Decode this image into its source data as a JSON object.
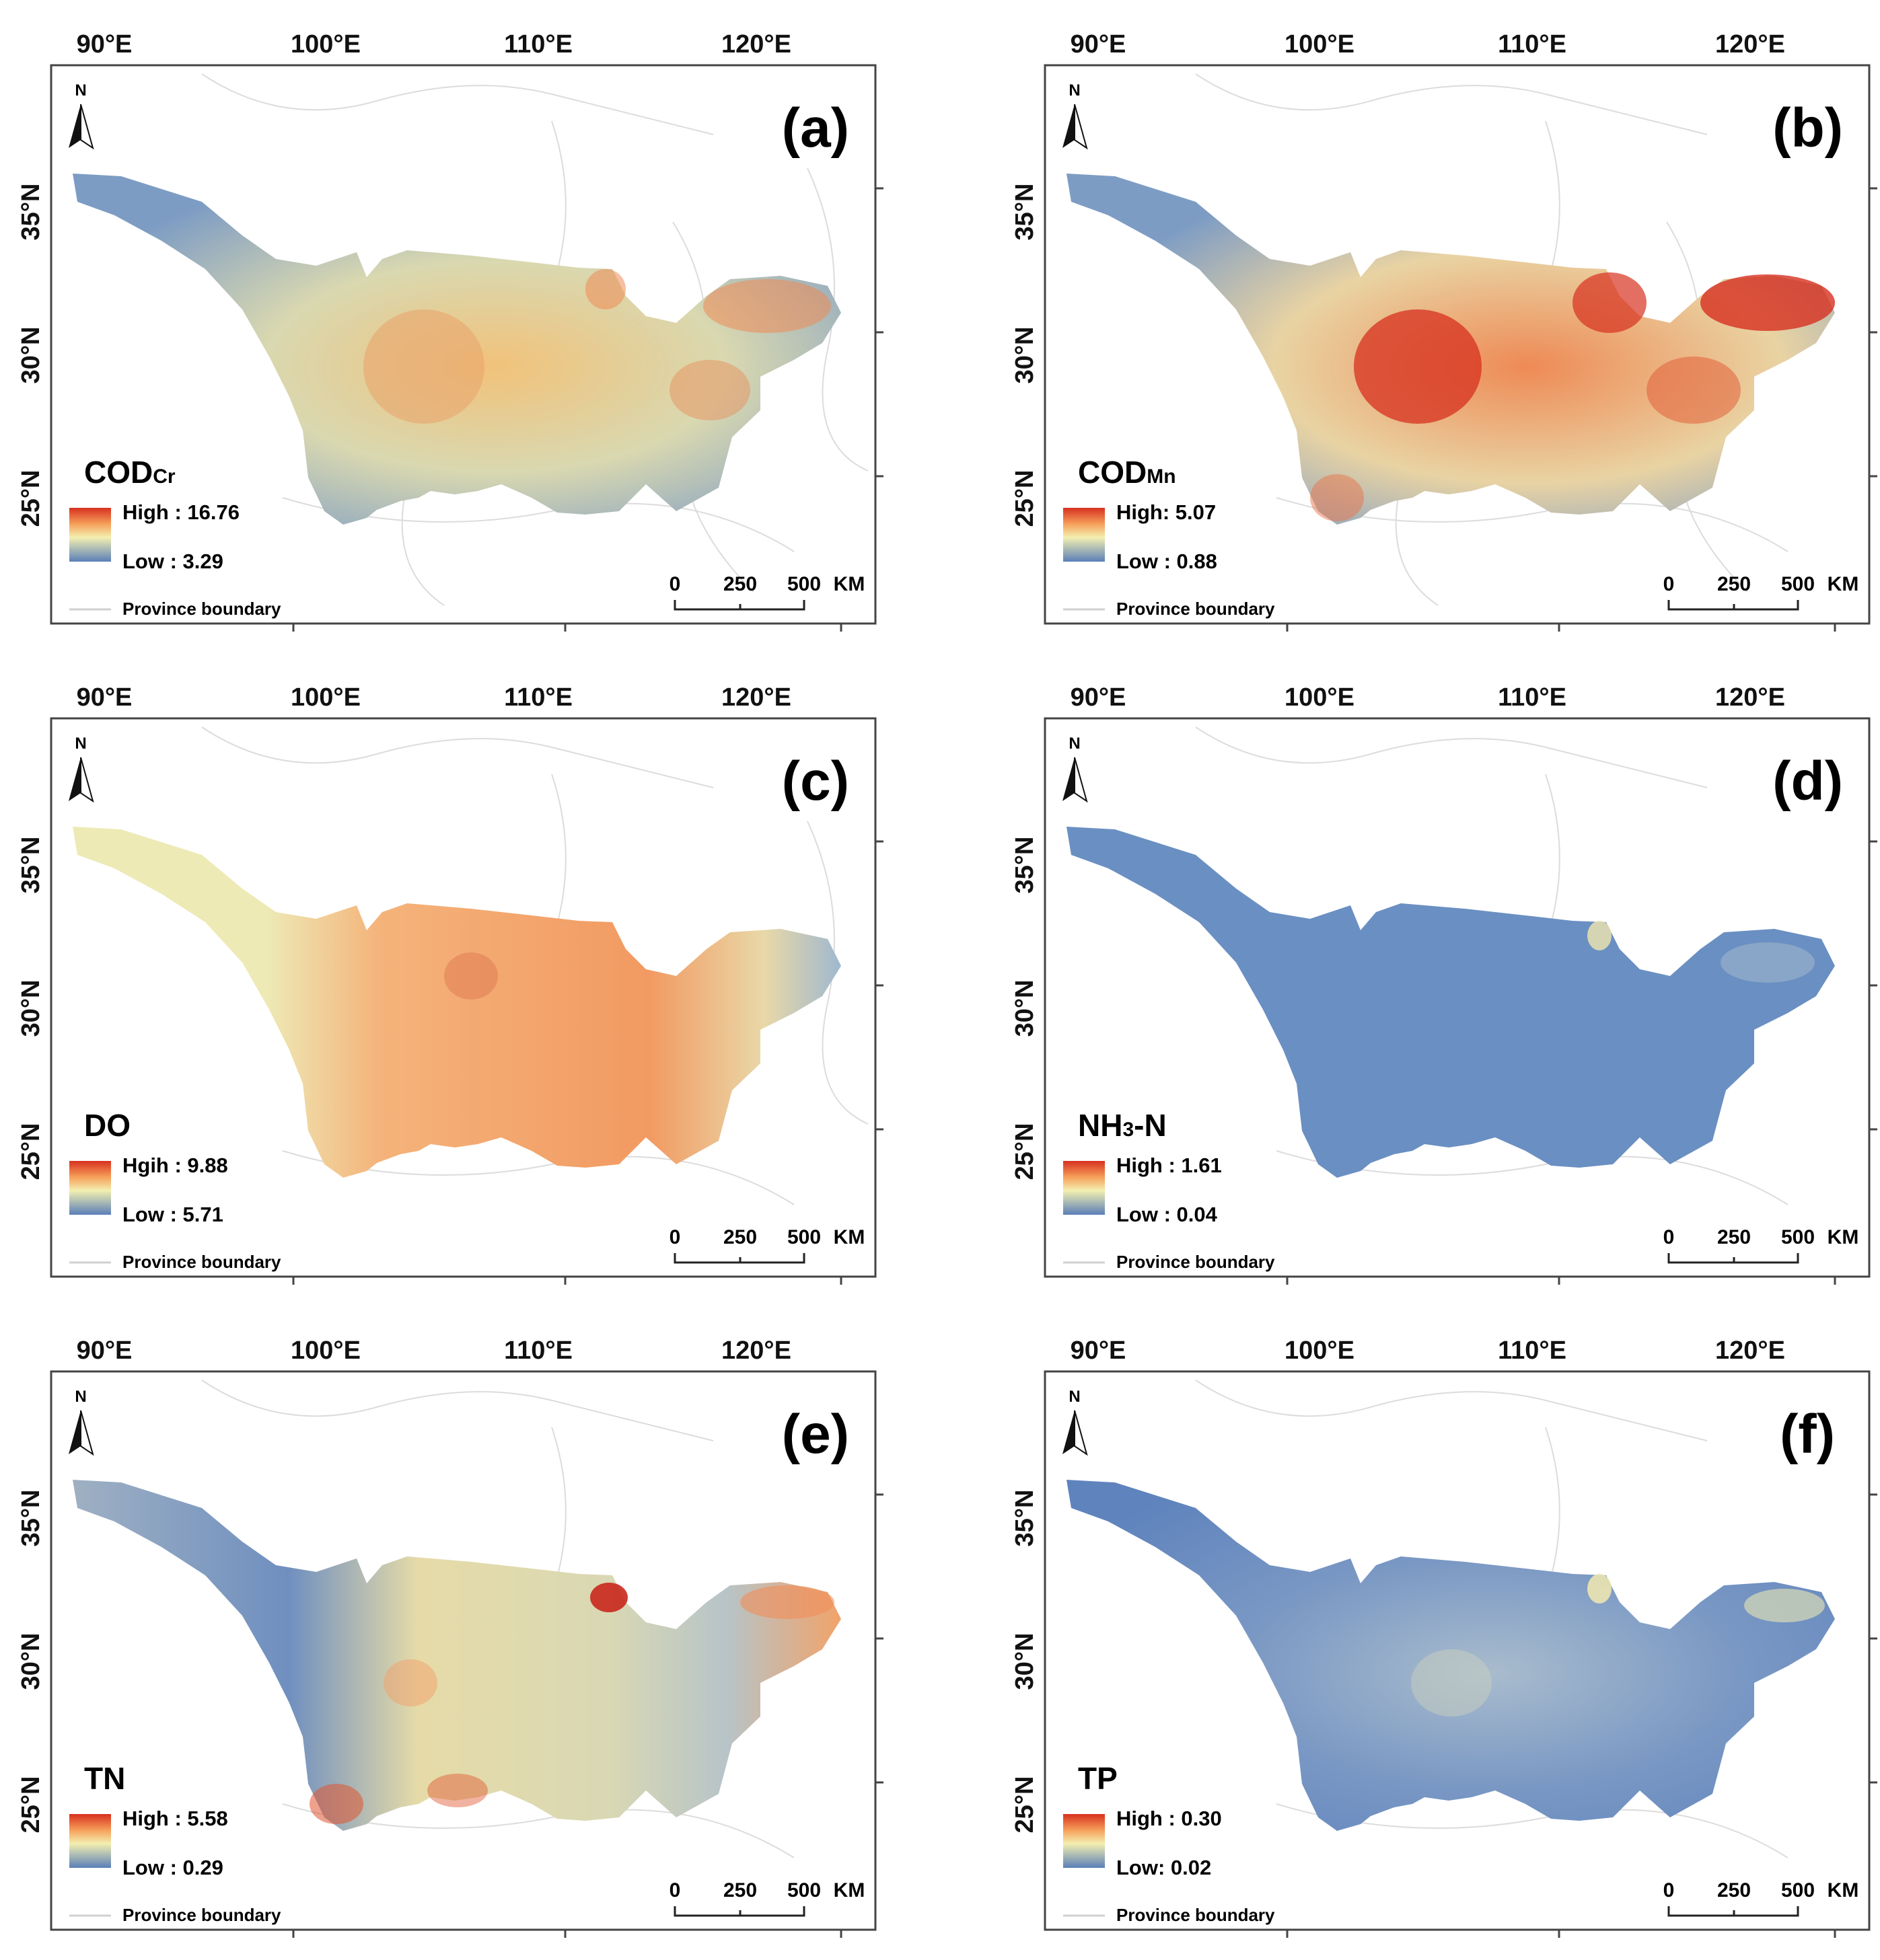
{
  "axes": {
    "lon_labels": [
      "90°E",
      "100°E",
      "110°E",
      "120°E"
    ],
    "lat_labels": [
      "35°N",
      "30°N",
      "25°N"
    ]
  },
  "common": {
    "north": "N",
    "scale": {
      "ticks": [
        "0",
        "250",
        "500"
      ],
      "unit": "KM"
    },
    "boundary": "Province boundary"
  },
  "palette": {
    "high": "#d7301f",
    "mid_high": "#f6a05a",
    "mid": "#f3efb0",
    "low": "#5a7fb8",
    "frame": "#444444",
    "boundary": "#d9d9d9"
  },
  "panels": [
    {
      "letter": "(a)",
      "param": "COD",
      "sub": "Cr",
      "high": "High : 16.76",
      "low": "Low : 3.29"
    },
    {
      "letter": "(b)",
      "param": "COD",
      "sub": "Mn",
      "high": "High: 5.07",
      "low": "Low : 0.88"
    },
    {
      "letter": "(c)",
      "param": "DO",
      "sub": "",
      "high": "Hgih : 9.88",
      "low": "Low : 5.71"
    },
    {
      "letter": "(d)",
      "param": "NH",
      "sub": "3",
      "suffix": "-N",
      "high": "High : 1.61",
      "low": "Low : 0.04"
    },
    {
      "letter": "(e)",
      "param": "TN",
      "sub": "",
      "high": "High : 5.58",
      "low": "Low : 0.29"
    },
    {
      "letter": "(f)",
      "param": "TP",
      "sub": "",
      "high": "High : 0.30",
      "low": "Low: 0.02"
    }
  ]
}
